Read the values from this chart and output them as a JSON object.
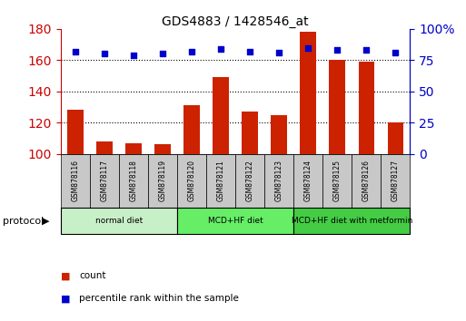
{
  "title": "GDS4883 / 1428546_at",
  "samples": [
    "GSM878116",
    "GSM878117",
    "GSM878118",
    "GSM878119",
    "GSM878120",
    "GSM878121",
    "GSM878122",
    "GSM878123",
    "GSM878124",
    "GSM878125",
    "GSM878126",
    "GSM878127"
  ],
  "counts": [
    128,
    108,
    107,
    106,
    131,
    149,
    127,
    125,
    178,
    160,
    159,
    120
  ],
  "percentile_ranks": [
    82,
    80,
    79,
    80,
    82,
    84,
    82,
    81,
    85,
    83,
    83,
    81
  ],
  "ylim_left": [
    100,
    180
  ],
  "ylim_right": [
    0,
    100
  ],
  "yticks_left": [
    100,
    120,
    140,
    160,
    180
  ],
  "yticks_right": [
    0,
    25,
    50,
    75,
    100
  ],
  "groups": [
    {
      "label": "normal diet",
      "start": 0,
      "end": 4,
      "color": "#c8f0c8"
    },
    {
      "label": "MCD+HF diet",
      "start": 4,
      "end": 8,
      "color": "#66ee66"
    },
    {
      "label": "MCD+HF diet with metformin",
      "start": 8,
      "end": 12,
      "color": "#44cc44"
    }
  ],
  "bar_color": "#cc2200",
  "dot_color": "#0000cc",
  "bar_width": 0.55,
  "tick_label_color_left": "#cc0000",
  "tick_label_color_right": "#0000cc",
  "bg_color": "#ffffff",
  "sample_bg": "#c8c8c8",
  "protocol_label": "protocol",
  "legend_count": "count",
  "legend_pct": "percentile rank within the sample"
}
